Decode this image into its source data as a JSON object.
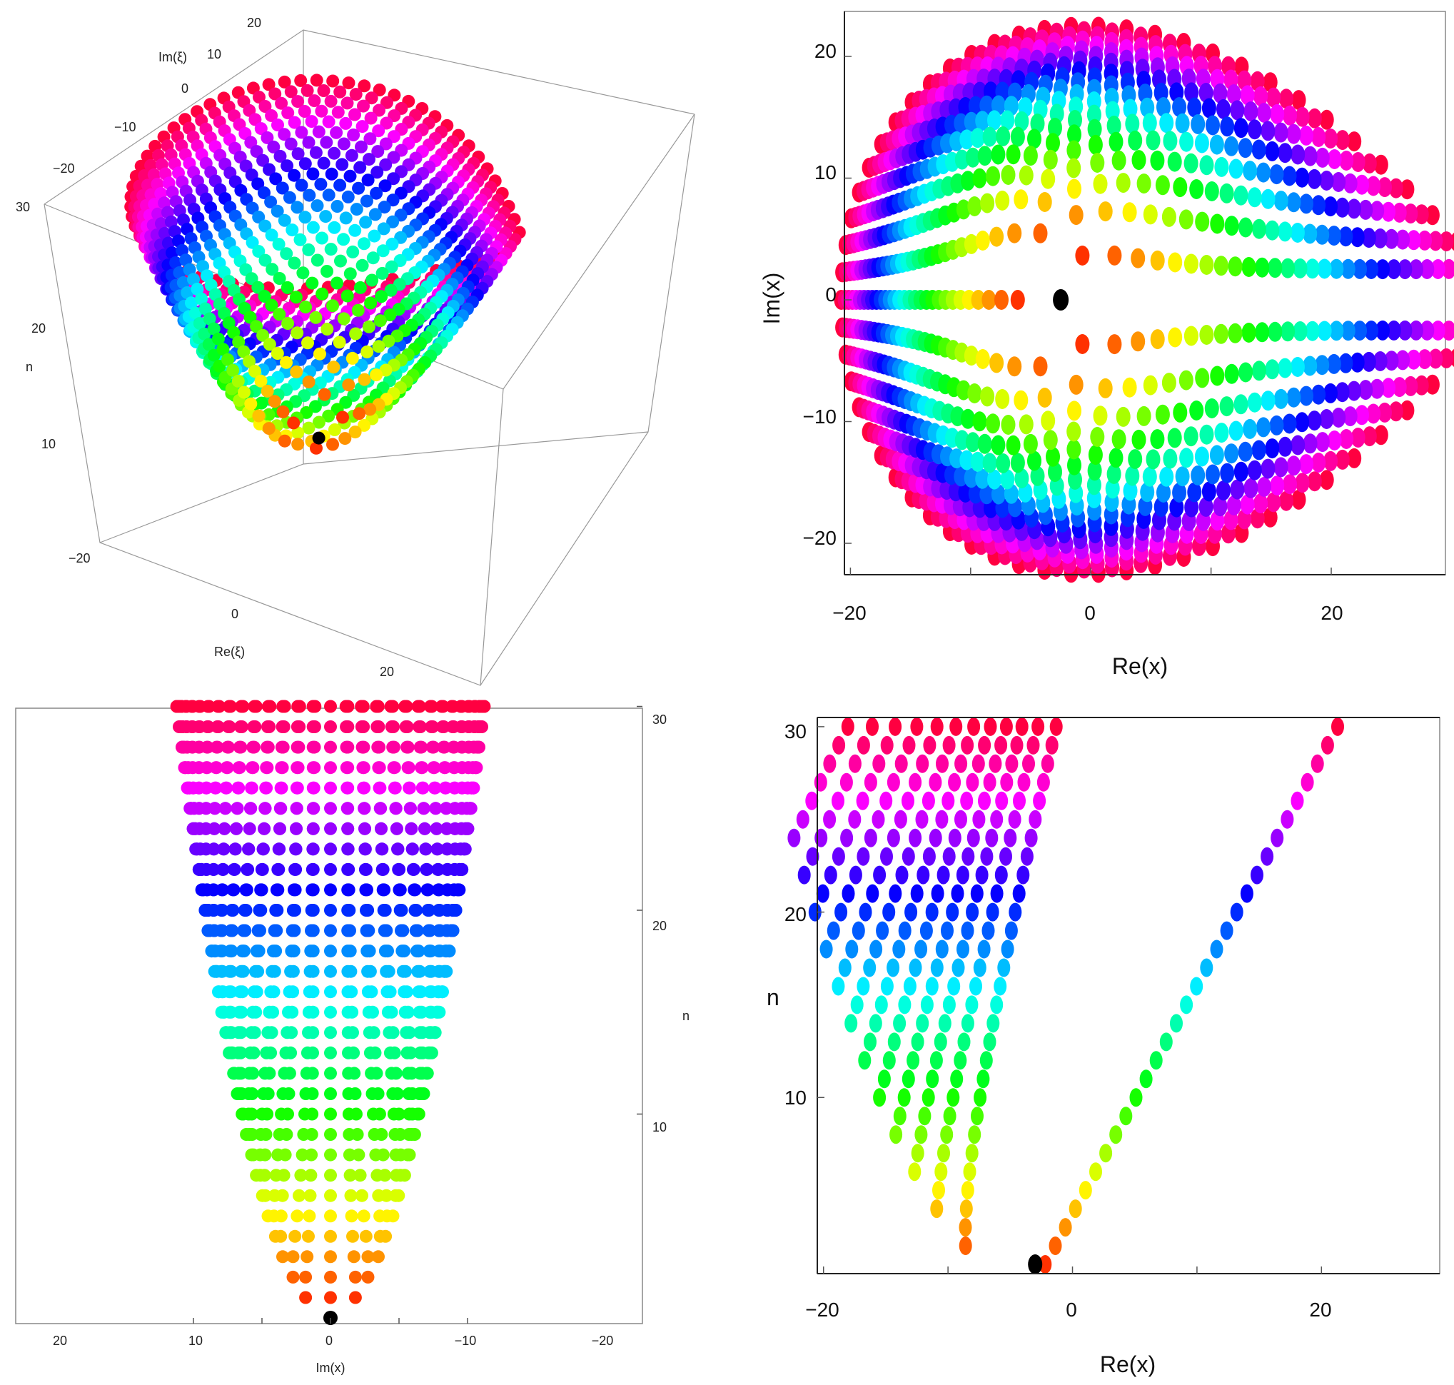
{
  "chart_data": [
    {
      "type": "scatter",
      "panel": "3d",
      "xlabel": "Re(ξ)",
      "ylabel": "Im(ξ)",
      "zlabel": "n",
      "x_ticks": [
        "0",
        "20"
      ],
      "y_ticks": [
        "20",
        "10",
        "0",
        "−10",
        "−20"
      ],
      "z_ticks": [
        "30",
        "20",
        "10",
        "−20"
      ],
      "n_range": [
        1,
        30
      ],
      "point_color": "hue by n: red (n small) → orange → yellow → green → cyan → blue → purple → magenta → red (n = 30)",
      "origin_point": {
        "n": 0,
        "color": "#000000"
      }
    },
    {
      "type": "scatter",
      "panel": "Re-Im",
      "xlabel": "Re(x)",
      "ylabel": "Im(x)",
      "xlim": [
        -21,
        29
      ],
      "ylim": [
        -23,
        23
      ],
      "x_ticks": [
        "−20",
        "0",
        "20"
      ],
      "y_ticks": [
        "20",
        "10",
        "0",
        "−10",
        "−20"
      ],
      "origin_point": {
        "x": -2.5,
        "y": 0,
        "color": "#000000"
      }
    },
    {
      "type": "scatter",
      "panel": "Im-n",
      "xlabel": "Im(x)",
      "ylabel": "n",
      "xlim": [
        23,
        -23
      ],
      "ylim": [
        -0.5,
        30.5
      ],
      "x_ticks": [
        "20",
        "10",
        "0",
        "−10",
        "−20"
      ],
      "y_ticks": [
        "10",
        "20",
        "30"
      ],
      "origin_point": {
        "x": 0,
        "y": 0,
        "color": "#000000"
      }
    },
    {
      "type": "scatter",
      "panel": "Re-n",
      "xlabel": "Re(x)",
      "ylabel": "n",
      "xlim": [
        -21,
        29
      ],
      "ylim": [
        0.5,
        30.5
      ],
      "x_ticks": [
        "−20",
        "0",
        "20"
      ],
      "y_ticks": [
        "10",
        "20",
        "30"
      ],
      "origin_point": {
        "x": -3,
        "y": 1,
        "color": "#000000"
      }
    }
  ]
}
